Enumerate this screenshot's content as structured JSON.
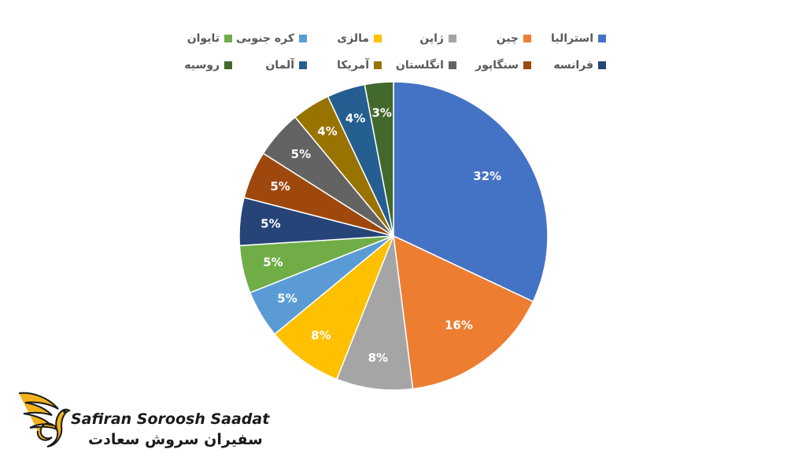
{
  "chart_data": {
    "type": "pie",
    "categories": [
      "استرالیا",
      "چین",
      "ژاپن",
      "مالزی",
      "کره جنوبی",
      "تایوان",
      "فرانسه",
      "سنگاپور",
      "انگلستان",
      "آمریکا",
      "آلمان",
      "روسیه"
    ],
    "values": [
      32,
      16,
      8,
      8,
      5,
      5,
      5,
      5,
      5,
      4,
      4,
      3
    ],
    "value_labels": [
      "32%",
      "16%",
      "8%",
      "8%",
      "5%",
      "5%",
      "5%",
      "5%",
      "5%",
      "4%",
      "4%",
      "3%"
    ],
    "colors": [
      "#4472C4",
      "#ED7D31",
      "#A5A5A5",
      "#FFC000",
      "#5B9BD5",
      "#70AD47",
      "#264478",
      "#9E480E",
      "#636363",
      "#997300",
      "#255E91",
      "#43682B"
    ],
    "legend_placement": "top"
  },
  "brand": {
    "name_en": "Safiran Soroosh Saadat",
    "name_fa": "سفیران سروش سعادت"
  }
}
